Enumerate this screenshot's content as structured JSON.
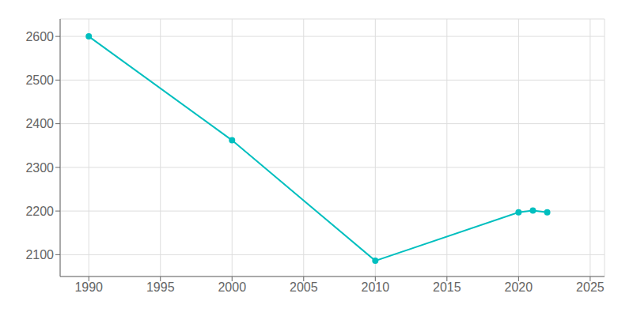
{
  "chart_data": {
    "type": "line",
    "x": [
      1990,
      2000,
      2010,
      2020,
      2021,
      2022
    ],
    "values": [
      2600,
      2362,
      2086,
      2197,
      2201,
      2197
    ],
    "color": "#00BFBF",
    "marker": "circle",
    "xlim": [
      1988,
      2026
    ],
    "ylim": [
      2050,
      2640
    ],
    "xticks": [
      1990,
      1995,
      2000,
      2005,
      2010,
      2015,
      2020,
      2025
    ],
    "yticks": [
      2100,
      2200,
      2300,
      2400,
      2500,
      2600
    ],
    "grid": true
  }
}
